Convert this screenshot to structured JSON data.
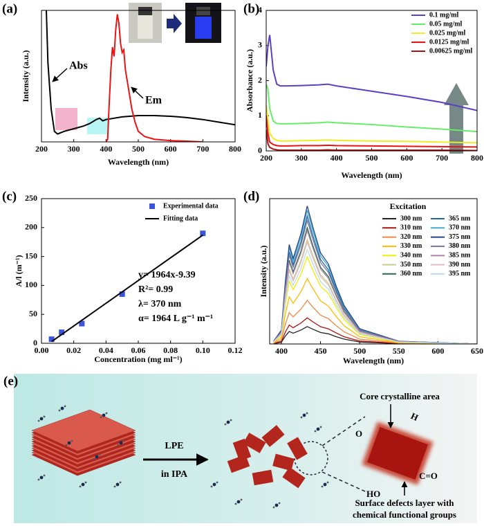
{
  "chart_data": [
    {
      "type": "line",
      "panel_label": "(a)",
      "x_label": "Wavelength (nm)",
      "y_label": "Intensity (a.u.)",
      "xlim": [
        200,
        800
      ],
      "xticks": [
        200,
        300,
        400,
        500,
        600,
        700,
        800
      ],
      "ylim": [
        0,
        100
      ],
      "legend": false,
      "series": [
        {
          "name": "Abs",
          "color": "#000000",
          "x": [
            215,
            220,
            230,
            240,
            250,
            270,
            300,
            330,
            350,
            370,
            380,
            390,
            400,
            450,
            500,
            550,
            600,
            650,
            700,
            750,
            800
          ],
          "values": [
            100,
            60,
            25,
            8,
            6,
            8,
            10,
            12,
            14,
            17,
            18,
            16,
            17,
            19,
            20,
            20,
            19.5,
            18.5,
            17,
            15,
            13
          ]
        },
        {
          "name": "Em",
          "color": "#ee1111",
          "x": [
            400,
            405,
            410,
            415,
            420,
            425,
            430,
            435,
            440,
            445,
            450,
            455,
            460,
            470,
            480,
            490,
            500,
            520,
            550,
            600,
            650,
            700
          ],
          "values": [
            0,
            2,
            30,
            55,
            72,
            65,
            85,
            97,
            90,
            75,
            68,
            70,
            55,
            40,
            25,
            15,
            8,
            4,
            2,
            1,
            0.5,
            0
          ]
        }
      ]
    },
    {
      "type": "line",
      "panel_label": "(b)",
      "x_label": "Wavelength (nm)",
      "y_label": "Absorbance (a.u.)",
      "xlim": [
        200,
        800
      ],
      "xticks": [
        200,
        300,
        400,
        500,
        600,
        700,
        800
      ],
      "ylim": [
        0,
        4
      ],
      "yticks": [
        0,
        1,
        2,
        3,
        4
      ],
      "legend": "upper right",
      "x": [
        200,
        205,
        210,
        220,
        230,
        240,
        260,
        300,
        350,
        375,
        400,
        500,
        600,
        700,
        800
      ],
      "series": [
        {
          "name": "0.1 mg/ml",
          "color": "#5b3fc4",
          "values": [
            2.4,
            3.0,
            3.3,
            2.3,
            1.9,
            1.85,
            1.85,
            1.86,
            1.88,
            1.9,
            1.85,
            1.7,
            1.55,
            1.38,
            1.15
          ]
        },
        {
          "name": "0.05 mg/ml",
          "color": "#66ee66",
          "values": [
            1.9,
            1.75,
            1.2,
            0.85,
            0.78,
            0.77,
            0.77,
            0.78,
            0.8,
            0.82,
            0.8,
            0.75,
            0.68,
            0.62,
            0.55
          ]
        },
        {
          "name": "0.025 mg/ml",
          "color": "#eeee22",
          "values": [
            1.3,
            0.9,
            0.5,
            0.35,
            0.3,
            0.28,
            0.28,
            0.29,
            0.3,
            0.31,
            0.3,
            0.28,
            0.27,
            0.25,
            0.23
          ]
        },
        {
          "name": "0.0125 mg/ml",
          "color": "#ee1111",
          "values": [
            1.0,
            0.5,
            0.25,
            0.18,
            0.15,
            0.14,
            0.14,
            0.15,
            0.15,
            0.16,
            0.15,
            0.14,
            0.13,
            0.12,
            0.11
          ]
        },
        {
          "name": "0.00625 mg/ml",
          "color": "#aa1111",
          "values": [
            0.6,
            0.2,
            0.1,
            0.05,
            0.03,
            0.02,
            0.02,
            0.02,
            0.02,
            0.03,
            0.02,
            0.02,
            0.02,
            0.02,
            0.01
          ]
        }
      ]
    },
    {
      "type": "scatter",
      "panel_label": "(c)",
      "x_label": "Concentration (mg ml⁻¹)",
      "y_label": "A/l (m⁻¹)",
      "xlim": [
        0,
        0.12
      ],
      "xticks": [
        {
          "value": 0,
          "label": "0.00"
        },
        0.02,
        0.04,
        0.06,
        0.08,
        {
          "value": 0.1,
          "label": "0.10"
        },
        0.12
      ],
      "ylim": [
        0,
        250
      ],
      "yticks": [
        0,
        50,
        100,
        150,
        200,
        250
      ],
      "legend": "upper left",
      "series": [
        {
          "name": "Experimental data",
          "color": "#3a55d9",
          "mode": "markers",
          "x": [
            0.00625,
            0.0125,
            0.025,
            0.05,
            0.1
          ],
          "values": [
            7,
            19,
            34,
            85,
            190
          ]
        },
        {
          "name": "Fitting data",
          "color": "#000000",
          "mode": "line",
          "x": [
            0.00625,
            0.1
          ],
          "values": [
            2.9,
            187
          ]
        }
      ],
      "annotations": [
        "y= 1964x-9.39",
        "R²= 0.99",
        "λ= 370 nm",
        "α= 1964 L g⁻¹ m⁻¹"
      ]
    },
    {
      "type": "line",
      "panel_label": "(d)",
      "x_label": "Wavelength (nm)",
      "y_label": "Intensity (a.u.)",
      "xlim": [
        385,
        650
      ],
      "xticks": [
        400,
        450,
        500,
        550,
        600,
        650
      ],
      "ylim": [
        0,
        100
      ],
      "legend": "upper right",
      "legend_title": "Excitation",
      "x": [
        390,
        400,
        405,
        410,
        415,
        425,
        433,
        440,
        450,
        460,
        470,
        480,
        500,
        550,
        650
      ],
      "series": [
        {
          "name": "300 nm",
          "color": "#222222",
          "values": [
            0.2,
            1.2,
            5.4,
            8.6,
            7.4,
            9.6,
            12,
            10.2,
            7.9,
            7,
            5,
            3.4,
            1.3,
            0.2,
            0
          ]
        },
        {
          "name": "310 nm",
          "color": "#aa1111",
          "values": [
            0.4,
            1.8,
            8.1,
            13,
            11.2,
            14.4,
            18,
            15.3,
            11.9,
            10.4,
            7.6,
            5,
            2,
            0.4,
            0
          ]
        },
        {
          "name": "320 nm",
          "color": "#ee8844",
          "values": [
            0.6,
            3,
            13.5,
            21.6,
            18.6,
            24,
            30,
            25.5,
            19.8,
            17.4,
            12.6,
            8.4,
            3.3,
            0.6,
            0
          ]
        },
        {
          "name": "330 nm",
          "color": "#ffbb00",
          "values": [
            0.9,
            4.5,
            20.3,
            32.4,
            27.9,
            36,
            45,
            38.3,
            29.7,
            26.1,
            18.9,
            12.6,
            5,
            0.9,
            0
          ]
        },
        {
          "name": "340 nm",
          "color": "#eeee00",
          "values": [
            1.2,
            6,
            27,
            43.2,
            37.2,
            48,
            60,
            51,
            39.6,
            34.8,
            25.2,
            16.8,
            6.6,
            1.2,
            0
          ]
        },
        {
          "name": "350 nm",
          "color": "#c8cc88",
          "values": [
            1.4,
            7.2,
            32.4,
            51.8,
            44.6,
            57.6,
            72,
            61.2,
            47.5,
            41.8,
            30.2,
            20.2,
            7.9,
            1.4,
            0
          ]
        },
        {
          "name": "360 nm",
          "color": "#2a6a4a",
          "values": [
            1.6,
            8,
            36,
            57.6,
            49.6,
            64,
            80,
            68,
            52.8,
            46.4,
            33.6,
            22.4,
            8.8,
            1.6,
            0
          ]
        },
        {
          "name": "365 nm",
          "color": "#2266aa",
          "values": [
            1.8,
            8.8,
            39.6,
            63.4,
            54.6,
            70.4,
            88,
            74.8,
            58.1,
            51,
            37,
            24.6,
            9.7,
            1.8,
            0
          ]
        },
        {
          "name": "370 nm",
          "color": "#44aacc",
          "values": [
            1.8,
            9.2,
            41.4,
            66.2,
            57,
            73.6,
            92,
            78.2,
            60.7,
            53.4,
            38.6,
            25.8,
            10.1,
            1.8,
            0
          ]
        },
        {
          "name": "375 nm",
          "color": "#224488",
          "values": [
            1.9,
            9.5,
            42.8,
            68.4,
            58.9,
            76,
            95,
            80.8,
            62.7,
            55.1,
            39.9,
            26.6,
            10.5,
            1.9,
            0
          ]
        },
        {
          "name": "380 nm",
          "color": "#777799",
          "values": [
            1.7,
            8.5,
            38.3,
            61.2,
            52.7,
            68,
            85,
            72.3,
            56.1,
            49.3,
            35.7,
            23.8,
            9.4,
            1.7,
            0
          ]
        },
        {
          "name": "385 nm",
          "color": "#aa88aa",
          "values": [
            1.6,
            7.8,
            35.1,
            56.2,
            48.4,
            62.4,
            78,
            66.3,
            51.5,
            45.2,
            32.8,
            21.8,
            8.6,
            1.6,
            0
          ]
        },
        {
          "name": "390 nm",
          "color": "#ddbbcc",
          "values": [
            1.4,
            7,
            31.5,
            50.4,
            43.4,
            56,
            70,
            59.5,
            46.2,
            40.6,
            29.4,
            19.6,
            7.7,
            1.4,
            0
          ]
        },
        {
          "name": "395 nm",
          "color": "#bcdbe8",
          "values": [
            1.3,
            6.5,
            29.3,
            46.8,
            40.3,
            52,
            65,
            55.3,
            42.9,
            37.7,
            27.3,
            18.2,
            7.2,
            1.3,
            0
          ]
        }
      ]
    }
  ],
  "diagram": {
    "panel_label": "(e)",
    "arrow_label_top": "LPE",
    "arrow_label_bottom": "in IPA",
    "core_label": "Core crystalline area",
    "surface_label": [
      "Surface defects layer with",
      "chemical functional groups"
    ],
    "groups": [
      "O",
      "H",
      "C=O",
      "HO"
    ]
  }
}
